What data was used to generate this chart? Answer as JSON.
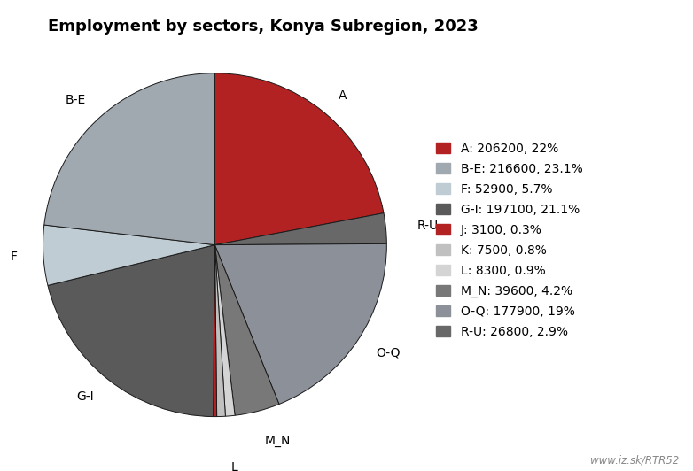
{
  "title": "Employment by sectors, Konya Subregion, 2023",
  "watermark": "www.iz.sk/RTR52",
  "wedge_order": [
    "A",
    "R-U",
    "O-Q",
    "M_N",
    "L",
    "K",
    "J",
    "G-I",
    "F",
    "B-E"
  ],
  "values_map": {
    "A": 206200,
    "B-E": 216600,
    "F": 52900,
    "G-I": 197100,
    "J": 3100,
    "K": 7500,
    "L": 8300,
    "M_N": 39600,
    "O-Q": 177900,
    "R-U": 26800
  },
  "colors_map": {
    "A": "#b22222",
    "B-E": "#a0a8b0",
    "F": "#c0ccd4",
    "G-I": "#5a5a5a",
    "J": "#b22222",
    "K": "#c0c0c0",
    "L": "#d4d4d4",
    "M_N": "#787878",
    "O-Q": "#8c9098",
    "R-U": "#686868"
  },
  "legend_labels": [
    "A: 206200, 22%",
    "B-E: 216600, 23.1%",
    "F: 52900, 5.7%",
    "G-I: 197100, 21.1%",
    "J: 3100, 0.3%",
    "K: 7500, 0.8%",
    "L: 8300, 0.9%",
    "M_N: 39600, 4.2%",
    "O-Q: 177900, 19%",
    "R-U: 26800, 2.9%"
  ],
  "legend_colors": [
    "#b22222",
    "#a0a8b0",
    "#c0ccd4",
    "#5a5a5a",
    "#b22222",
    "#c0c0c0",
    "#d4d4d4",
    "#787878",
    "#8c9098",
    "#686868"
  ],
  "label_fontsize": 10,
  "title_fontsize": 13,
  "legend_fontsize": 10
}
